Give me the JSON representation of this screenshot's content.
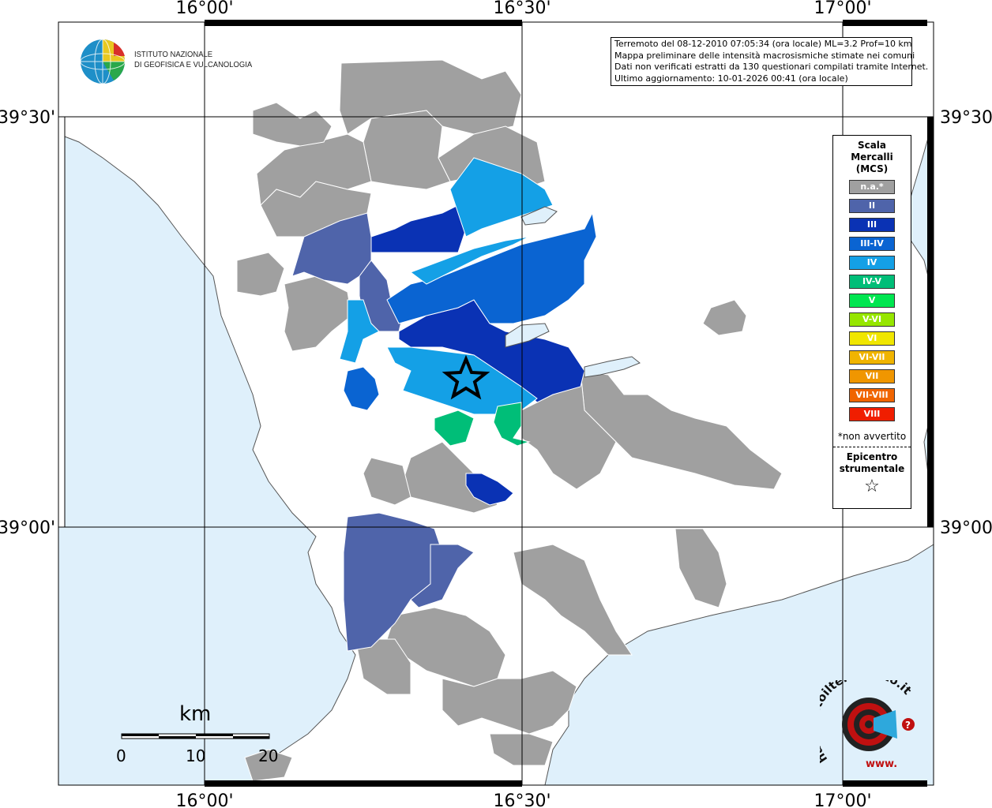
{
  "axes": {
    "top_labels": [
      "16°00'",
      "16°30'",
      "17°00'"
    ],
    "bottom_labels": [
      "16°00'",
      "16°30'",
      "17°00'"
    ],
    "left_labels": [
      "39°30'",
      "39°00'"
    ],
    "right_labels": [
      "39°30'",
      "39°00'"
    ]
  },
  "institute": {
    "line1": "ISTITUTO NAZIONALE",
    "line2": "DI GEOFISICA E VULCANOLOGIA"
  },
  "info": {
    "line1": "Terremoto del 08-12-2010 07:05:34 (ora locale) ML=3.2 Prof=10 km",
    "line2": "Mappa preliminare delle intensità macrosismiche stimate nei comuni",
    "line3": "Dati non verificati estratti da 130 questionari compilati tramite Internet.",
    "line4": "Ultimo aggiornamento: 10-01-2026 00:41 (ora locale)"
  },
  "legend": {
    "title1": "Scala",
    "title2": "Mercalli",
    "title3": "(MCS)",
    "items": [
      {
        "label": "n.a.*",
        "color": "#a0a0a0"
      },
      {
        "label": "II",
        "color": "#4f64aa"
      },
      {
        "label": "III",
        "color": "#0a32b4"
      },
      {
        "label": "III-IV",
        "color": "#0a64d2"
      },
      {
        "label": "IV",
        "color": "#14a0e6"
      },
      {
        "label": "IV-V",
        "color": "#00be78"
      },
      {
        "label": "V",
        "color": "#00e650"
      },
      {
        "label": "V-VI",
        "color": "#96e600"
      },
      {
        "label": "VI",
        "color": "#f0e600"
      },
      {
        "label": "VI-VII",
        "color": "#f0b400"
      },
      {
        "label": "VII",
        "color": "#f09600"
      },
      {
        "label": "VII-VIII",
        "color": "#f06400"
      },
      {
        "label": "VIII",
        "color": "#f01e00"
      }
    ],
    "note": "*non avvertito",
    "epicenter1": "Epicentro",
    "epicenter2": "strumentale",
    "star": "☆"
  },
  "scale": {
    "title": "km",
    "ticks": [
      "0",
      "10",
      "20"
    ]
  },
  "colors": {
    "sea": "#dff0fb",
    "land": "#ffffff",
    "na": "#a0a0a0",
    "II": "#4f64aa",
    "III": "#0a32b4",
    "III-IV": "#0a64d2",
    "IV": "#14a0e6",
    "IV-V": "#00be78"
  },
  "hsit_logo": {
    "text1": "haisentitoilterremoto.it",
    "text2": "www.",
    "icon": "?"
  }
}
